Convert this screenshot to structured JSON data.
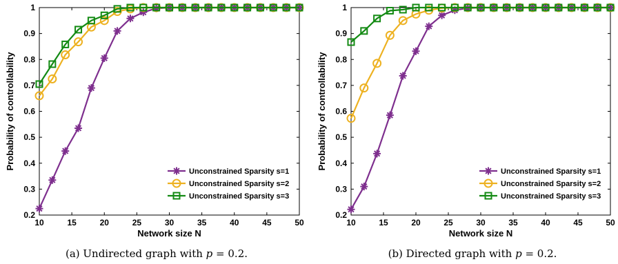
{
  "chart_data": [
    {
      "type": "line",
      "caption": {
        "prefix": "(a) Undirected graph with ",
        "var": "p",
        "suffix": " = 0.2."
      },
      "xlabel": "Network size N",
      "ylabel": "Probability of controllability",
      "xlim": [
        10,
        50
      ],
      "ylim": [
        0.2,
        1
      ],
      "xticks": [
        10,
        15,
        20,
        25,
        30,
        35,
        40,
        45,
        50
      ],
      "yticks": [
        0.2,
        0.3,
        0.4,
        0.5,
        0.6,
        0.7,
        0.8,
        0.9,
        1
      ],
      "ytick_labels": [
        "0.2",
        "0.3",
        "0.4",
        "0.5",
        "0.6",
        "0.7",
        "0.8",
        "0.9",
        "1"
      ],
      "grid": false,
      "legend_position": "bottom-right",
      "x": [
        10,
        12,
        14,
        16,
        18,
        20,
        22,
        24,
        26,
        28,
        30,
        32,
        34,
        36,
        38,
        40,
        42,
        44,
        46,
        48,
        50
      ],
      "series": [
        {
          "name": "Unconstrained Sparsity s=1",
          "color": "#7E2F8E",
          "marker": "star",
          "values": [
            0.225,
            0.335,
            0.447,
            0.535,
            0.69,
            0.805,
            0.91,
            0.958,
            0.982,
            0.997,
            1,
            1,
            1,
            1,
            1,
            1,
            1,
            1,
            1,
            1,
            1
          ]
        },
        {
          "name": "Unconstrained Sparsity s=2",
          "color": "#EDB120",
          "marker": "circle",
          "values": [
            0.66,
            0.725,
            0.818,
            0.868,
            0.925,
            0.95,
            0.985,
            0.995,
            1,
            1,
            1,
            1,
            1,
            1,
            1,
            1,
            1,
            1,
            1,
            1,
            1
          ]
        },
        {
          "name": "Unconstrained Sparsity s=3",
          "color": "#138A13",
          "marker": "square",
          "values": [
            0.705,
            0.782,
            0.858,
            0.915,
            0.95,
            0.97,
            0.995,
            1,
            1,
            1,
            1,
            1,
            1,
            1,
            1,
            1,
            1,
            1,
            1,
            1,
            1
          ]
        }
      ]
    },
    {
      "type": "line",
      "caption": {
        "prefix": "(b) Directed graph with ",
        "var": "p",
        "suffix": " = 0.2."
      },
      "xlabel": "Network size N",
      "ylabel": "Probability of controllability",
      "xlim": [
        10,
        50
      ],
      "ylim": [
        0.2,
        1
      ],
      "xticks": [
        10,
        15,
        20,
        25,
        30,
        35,
        40,
        45,
        50
      ],
      "yticks": [
        0.2,
        0.3,
        0.4,
        0.5,
        0.6,
        0.7,
        0.8,
        0.9,
        1
      ],
      "ytick_labels": [
        "0.2",
        "0.3",
        "0.4",
        "0.5",
        "0.6",
        "0.7",
        "0.8",
        "0.9",
        "1"
      ],
      "grid": false,
      "legend_position": "bottom-right",
      "x": [
        10,
        12,
        14,
        16,
        18,
        20,
        22,
        24,
        26,
        28,
        30,
        32,
        34,
        36,
        38,
        40,
        42,
        44,
        46,
        48,
        50
      ],
      "series": [
        {
          "name": "Unconstrained Sparsity s=1",
          "color": "#7E2F8E",
          "marker": "star",
          "values": [
            0.222,
            0.31,
            0.437,
            0.585,
            0.737,
            0.832,
            0.928,
            0.97,
            0.99,
            0.998,
            1,
            1,
            1,
            1,
            1,
            1,
            1,
            1,
            1,
            1,
            1
          ]
        },
        {
          "name": "Unconstrained Sparsity s=2",
          "color": "#EDB120",
          "marker": "circle",
          "values": [
            0.573,
            0.69,
            0.785,
            0.893,
            0.95,
            0.975,
            0.99,
            0.998,
            1,
            1,
            1,
            1,
            1,
            1,
            1,
            1,
            1,
            1,
            1,
            1,
            1
          ]
        },
        {
          "name": "Unconstrained Sparsity s=3",
          "color": "#138A13",
          "marker": "square",
          "values": [
            0.867,
            0.91,
            0.958,
            0.988,
            0.992,
            1,
            1,
            1,
            1,
            1,
            1,
            1,
            1,
            1,
            1,
            1,
            1,
            1,
            1,
            1,
            1
          ]
        }
      ]
    }
  ]
}
